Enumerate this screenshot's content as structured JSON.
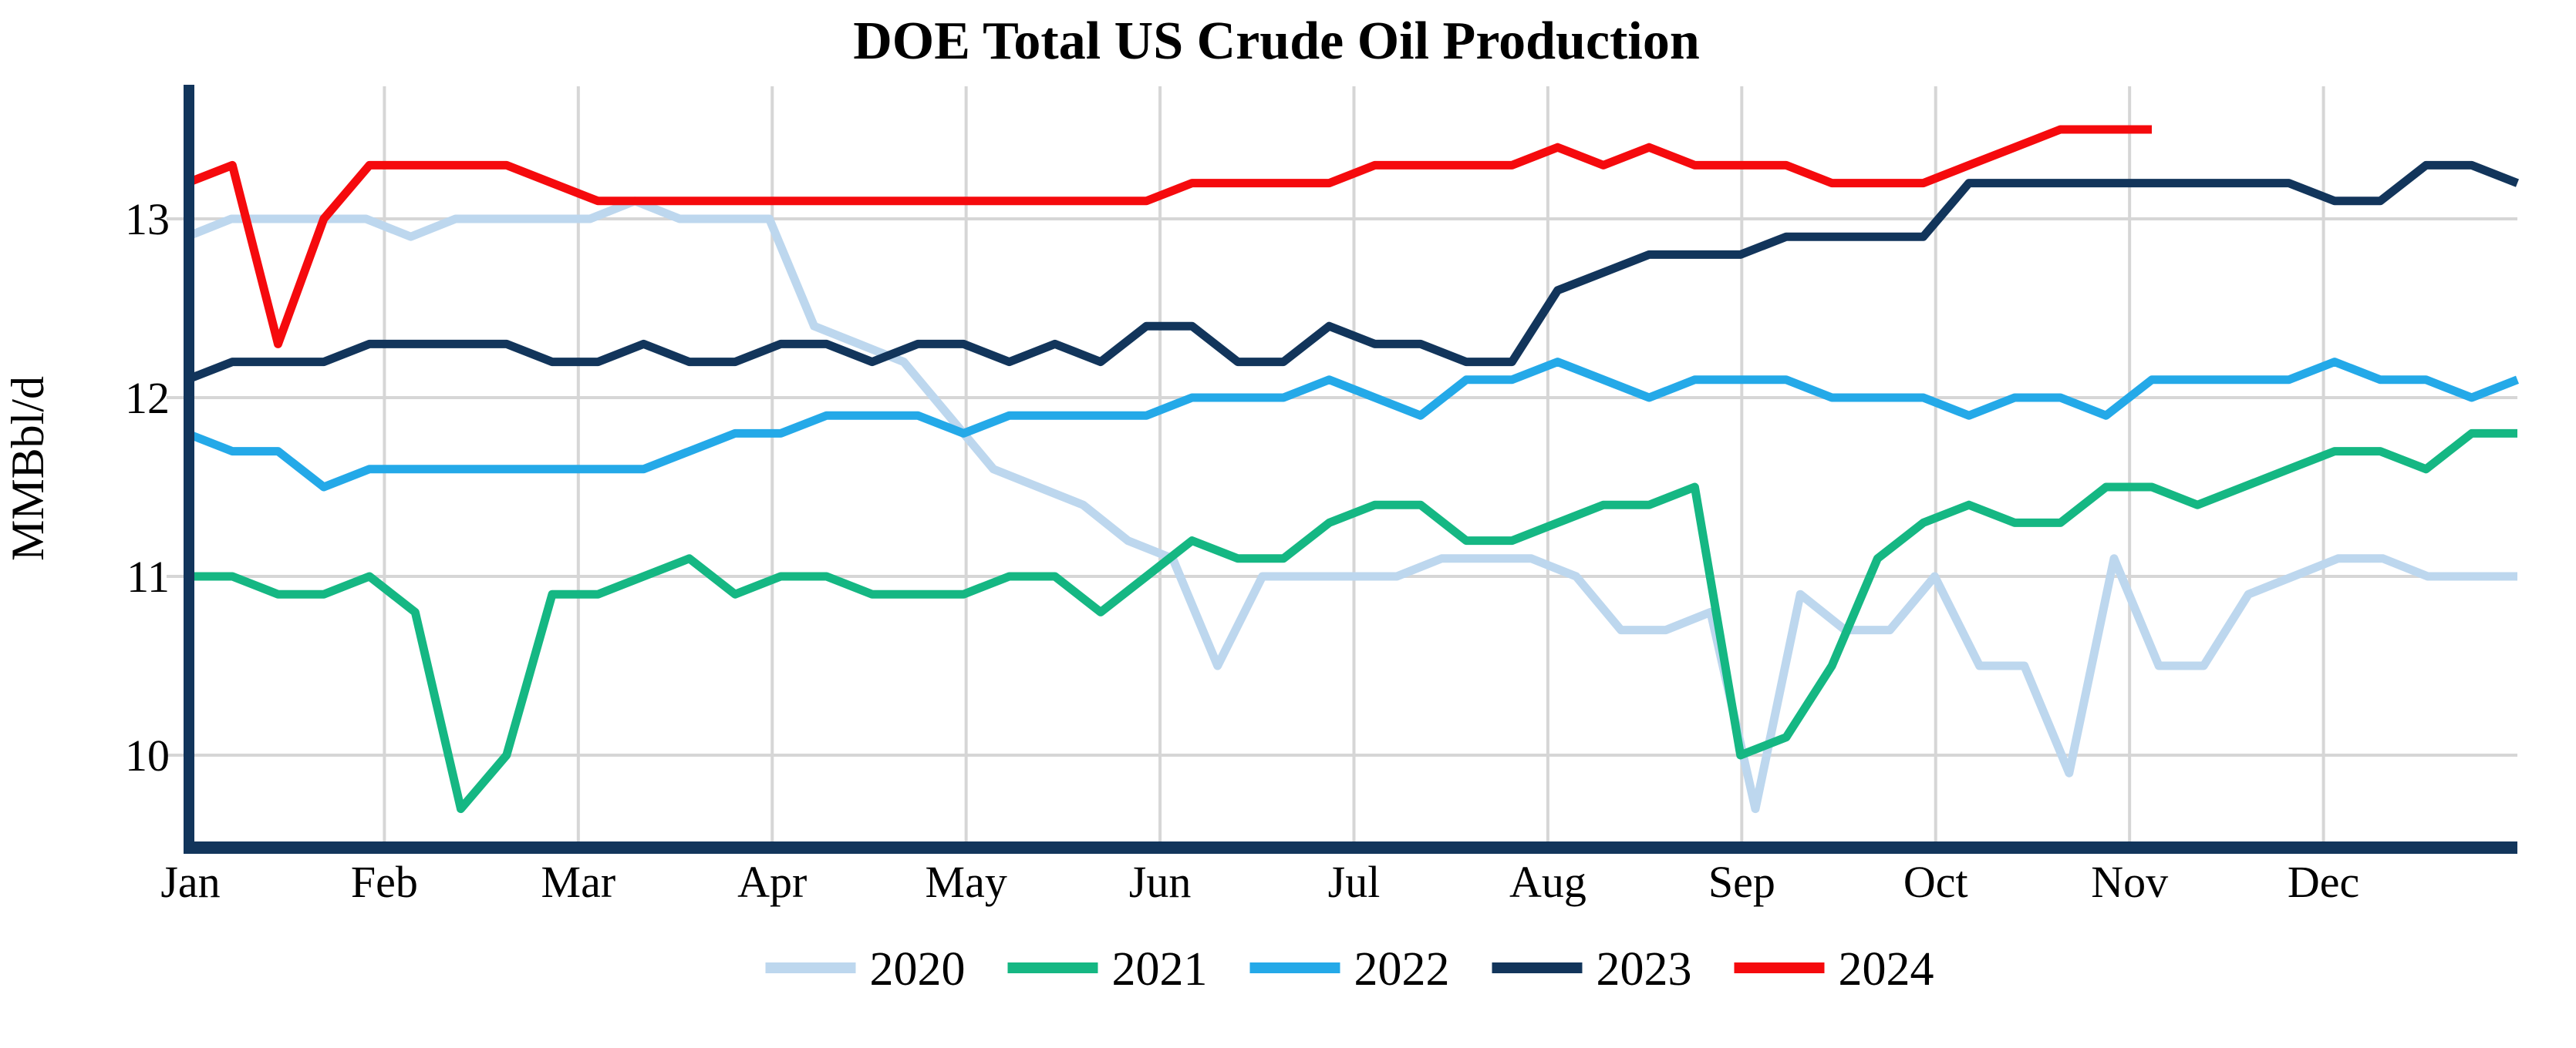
{
  "page": {
    "background_color": "#FFFFFF"
  },
  "chart_data": {
    "type": "line",
    "title": "DOE Total US Crude Oil Production",
    "ylabel": "MMBbl/d",
    "xlabel": "",
    "x_unit": "weekly data, January through December",
    "x_ticks": [
      "Jan",
      "Feb",
      "Mar",
      "Apr",
      "May",
      "Jun",
      "Jul",
      "Aug",
      "Sep",
      "Oct",
      "Nov",
      "Dec"
    ],
    "y_ticks": [
      13,
      12,
      11,
      10
    ],
    "ylim_shown": [
      9.45,
      13.75
    ],
    "grid": true,
    "legend_position": "bottom-center",
    "colors": {
      "grid": "#D6D6D6",
      "axis": "#12355B",
      "text": "#000000"
    },
    "series": [
      {
        "name": "2020",
        "color": "#BDD7EE",
        "values": [
          12.9,
          13,
          13,
          13,
          13,
          12.9,
          13,
          13,
          13,
          13,
          13.1,
          13,
          13,
          13,
          12.4,
          12.3,
          12.2,
          11.9,
          11.6,
          11.5,
          11.4,
          11.2,
          11.1,
          10.5,
          11,
          11,
          11,
          11,
          11.1,
          11.1,
          11.1,
          11,
          10.7,
          10.7,
          10.8,
          9.7,
          10.9,
          10.7,
          10.7,
          11,
          10.5,
          10.5,
          9.9,
          11.1,
          10.5,
          10.5,
          10.9,
          11,
          11.1,
          11.1,
          11,
          11,
          11
        ]
      },
      {
        "name": "2021",
        "color": "#15B783",
        "values": [
          11,
          11,
          10.9,
          10.9,
          11,
          10.8,
          9.7,
          10,
          10.9,
          10.9,
          11,
          11.1,
          10.9,
          11,
          11,
          10.9,
          10.9,
          10.9,
          11,
          11,
          10.8,
          11,
          11.2,
          11.1,
          11.1,
          11.3,
          11.4,
          11.4,
          11.2,
          11.2,
          11.3,
          11.4,
          11.4,
          11.5,
          10,
          10.1,
          10.5,
          11.1,
          11.3,
          11.4,
          11.3,
          11.3,
          11.5,
          11.5,
          11.4,
          11.5,
          11.6,
          11.7,
          11.7,
          11.6,
          11.8,
          11.8
        ]
      },
      {
        "name": "2022",
        "color": "#24A9E8",
        "values": [
          11.8,
          11.7,
          11.7,
          11.5,
          11.6,
          11.6,
          11.6,
          11.6,
          11.6,
          11.6,
          11.6,
          11.7,
          11.8,
          11.8,
          11.9,
          11.9,
          11.9,
          11.8,
          11.9,
          11.9,
          11.9,
          11.9,
          12,
          12,
          12,
          12.1,
          12,
          11.9,
          12.1,
          12.1,
          12.2,
          12.1,
          12,
          12.1,
          12.1,
          12.1,
          12,
          12,
          12,
          11.9,
          12,
          12,
          11.9,
          12.1,
          12.1,
          12.1,
          12.1,
          12.2,
          12.1,
          12.1,
          12,
          12.1
        ]
      },
      {
        "name": "2023",
        "color": "#12355B",
        "values": [
          12.1,
          12.2,
          12.2,
          12.2,
          12.3,
          12.3,
          12.3,
          12.3,
          12.2,
          12.2,
          12.3,
          12.2,
          12.2,
          12.3,
          12.3,
          12.2,
          12.3,
          12.3,
          12.2,
          12.3,
          12.2,
          12.4,
          12.4,
          12.2,
          12.2,
          12.4,
          12.3,
          12.3,
          12.2,
          12.2,
          12.6,
          12.7,
          12.8,
          12.8,
          12.8,
          12.9,
          12.9,
          12.9,
          12.9,
          13.2,
          13.2,
          13.2,
          13.2,
          13.2,
          13.2,
          13.2,
          13.2,
          13.1,
          13.1,
          13.3,
          13.3,
          13.2
        ]
      },
      {
        "name": "2024",
        "color": "#F50A0D",
        "partial_year": true,
        "values": [
          13.2,
          13.3,
          12.3,
          13,
          13.3,
          13.3,
          13.3,
          13.3,
          13.2,
          13.1,
          13.1,
          13.1,
          13.1,
          13.1,
          13.1,
          13.1,
          13.1,
          13.1,
          13.1,
          13.1,
          13.1,
          13.1,
          13.2,
          13.2,
          13.2,
          13.2,
          13.3,
          13.3,
          13.3,
          13.3,
          13.4,
          13.3,
          13.4,
          13.3,
          13.3,
          13.3,
          13.2,
          13.2,
          13.2,
          13.3,
          13.4,
          13.5,
          13.5,
          13.5
        ]
      }
    ]
  }
}
